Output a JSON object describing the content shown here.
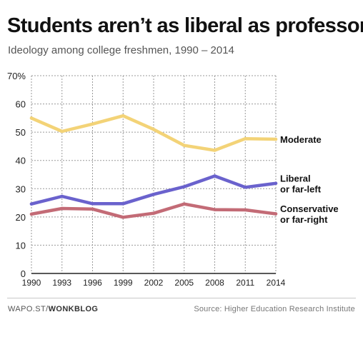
{
  "header": {
    "title": "Students aren’t as liberal as professors",
    "subtitle": "Ideology among college freshmen, 1990 – 2014"
  },
  "footer": {
    "domain": "WAPO.ST/",
    "brand": "WONKBLOG",
    "source": "Source: Higher Education Research Institute"
  },
  "chart_data": {
    "type": "line",
    "title": "Students aren’t as liberal as professors",
    "subtitle": "Ideology among college freshmen, 1990 – 2014",
    "xlabel": "",
    "ylabel": "",
    "categories": [
      "1990",
      "1993",
      "1996",
      "1999",
      "2002",
      "2005",
      "2008",
      "2011",
      "2014"
    ],
    "ylim": [
      0,
      70
    ],
    "yticks": [
      "0",
      "10",
      "20",
      "30",
      "40",
      "50",
      "60",
      "70%"
    ],
    "grid": true,
    "series": [
      {
        "name": "Moderate",
        "label_lines": [
          "Moderate"
        ],
        "color": "#f3d377",
        "values": [
          55,
          50.3,
          52.9,
          55.8,
          51,
          45.3,
          43.6,
          47.7,
          47.5
        ]
      },
      {
        "name": "Liberal or far-left",
        "label_lines": [
          "Liberal",
          "or far-left"
        ],
        "color": "#6a62cd",
        "values": [
          24.6,
          27.3,
          24.7,
          24.7,
          28,
          30.7,
          34.5,
          30.5,
          31.9
        ]
      },
      {
        "name": "Conservative or far-right",
        "label_lines": [
          "Conservative",
          "or far-right"
        ],
        "color": "#c36b76",
        "values": [
          21,
          23,
          22.8,
          19.9,
          21.3,
          24.6,
          22.6,
          22.5,
          21.1
        ]
      }
    ]
  }
}
